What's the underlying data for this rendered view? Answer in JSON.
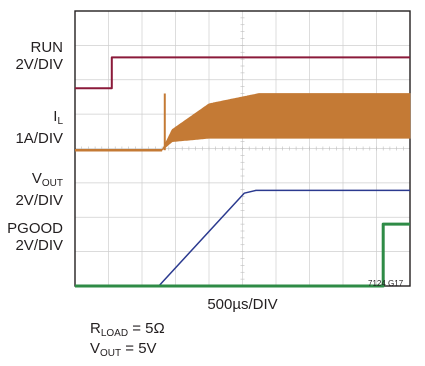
{
  "chart_data": {
    "type": "line",
    "instrument": "oscilloscope",
    "grid": "on",
    "divisions": {
      "x": 10,
      "y": 8
    },
    "xlabel": "500µs/DIV",
    "x_units_per_div_us": 500,
    "figure_id": "7124 G17",
    "series": [
      {
        "name": "RUN",
        "label_line1": "RUN",
        "label_line2": "2V/DIV",
        "color": "#8b1a3a",
        "baseline_div": 5.75,
        "points": [
          [
            0,
            0
          ],
          [
            1.1,
            0
          ],
          [
            1.1,
            0.9
          ],
          [
            10,
            0.9
          ]
        ]
      },
      {
        "name": "IL",
        "label_main": "I",
        "label_sub": "L",
        "label_line2": "1A/DIV",
        "color": "#c47a35",
        "baseline_div": 3.95,
        "start_div": 2.6,
        "spike_div": 2.68,
        "band_min": [
          [
            2.6,
            0
          ],
          [
            2.9,
            0.25
          ],
          [
            4.0,
            0.35
          ],
          [
            10,
            0.35
          ]
        ],
        "band_max": [
          [
            2.6,
            0
          ],
          [
            2.9,
            0.6
          ],
          [
            4.0,
            1.35
          ],
          [
            5.5,
            1.65
          ],
          [
            10,
            1.65
          ]
        ],
        "spike_top": 1.65
      },
      {
        "name": "VOUT",
        "label_main": "V",
        "label_sub": "OUT",
        "label_line2": "2V/DIV",
        "color": "#2b3a8f",
        "baseline_div": 0.0,
        "points": [
          [
            0,
            0
          ],
          [
            2.5,
            0
          ],
          [
            5.05,
            2.7
          ],
          [
            5.4,
            2.78
          ],
          [
            10,
            2.78
          ]
        ]
      },
      {
        "name": "PGOOD",
        "label_line1": "PGOOD",
        "label_line2": "2V/DIV",
        "color": "#2e8b46",
        "baseline_div": 0.0,
        "points": [
          [
            0,
            0
          ],
          [
            9.2,
            0
          ],
          [
            9.2,
            1.8
          ],
          [
            10,
            1.8
          ]
        ]
      }
    ],
    "annotations": {
      "rload_main": "R",
      "rload_sub": "LOAD",
      "rload_value": " = 5Ω",
      "vout_main": "V",
      "vout_sub": "OUT",
      "vout_value": " = 5V"
    }
  }
}
